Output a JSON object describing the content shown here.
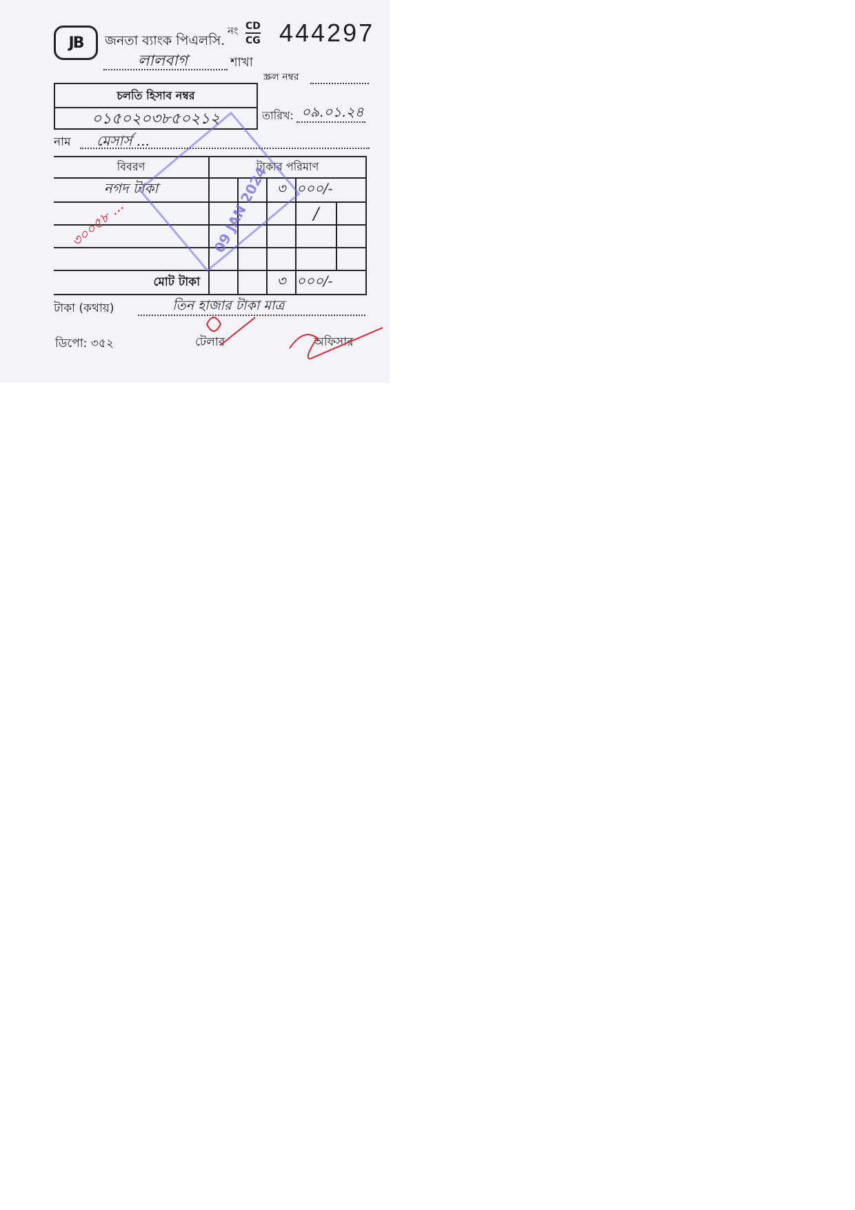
{
  "bank": {
    "logo_text": "JB",
    "name": "জনতা ব্যাংক পিএলসি.",
    "no_label": "নং",
    "type_top": "CD",
    "type_bottom": "CG",
    "serial": "444297"
  },
  "branch": {
    "label": "শাখা",
    "value": "লালবাগ"
  },
  "scroll": {
    "label": "স্ক্রল নম্বর"
  },
  "account": {
    "header": "চলতি হিসাব নম্বর",
    "number": "০১৫০২০৩৮৫০২১২"
  },
  "date": {
    "label": "তারিখ:",
    "value": "০৯.০১.২৪"
  },
  "name": {
    "label": "নাম",
    "value": "মেসার্স ..."
  },
  "table": {
    "headers": [
      "বিবরণ",
      "টাকার পরিমাণ"
    ],
    "rows": [
      {
        "description": "নগদ টাকা",
        "amount_thousands": "৩",
        "amount_rest": "০০০/-"
      },
      {
        "description": "",
        "amount_thousands": "",
        "amount_rest": "/"
      },
      {
        "description": "",
        "amount_thousands": "",
        "amount_rest": ""
      },
      {
        "description": "",
        "amount_thousands": "",
        "amount_rest": ""
      }
    ],
    "total_label": "মোট টাকা",
    "total_thousands": "৩",
    "total_rest": "০০০/-"
  },
  "in_words": {
    "label": "টাকা (কথায়)",
    "value": "তিন হাজার টাকা মাত্র"
  },
  "footer": {
    "depot": "ডিপো: ৩৫২",
    "teller": "টেলার",
    "officer": "অফিসার"
  },
  "stamp": {
    "date": "09 JAN 2024"
  },
  "annotations": {
    "red_note": "৩০০৫৮ ... ",
    "colors": {
      "ink_red": "#e0202a",
      "stamp_blue": "#6e64dc"
    }
  }
}
